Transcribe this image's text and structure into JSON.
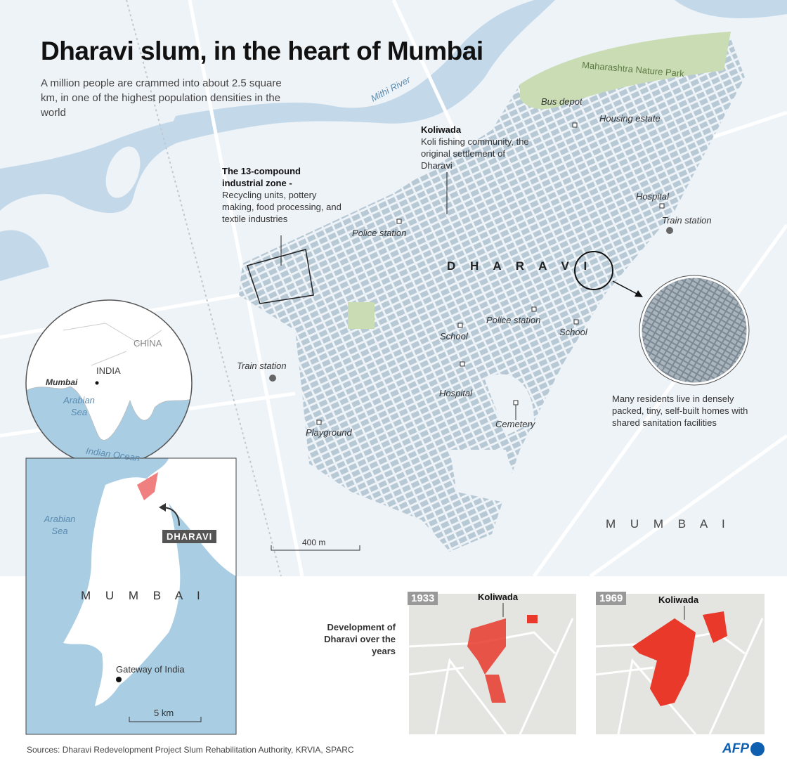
{
  "title": "Dharavi slum, in the heart of Mumbai",
  "subtitle": "A million people are crammed into about 2.5 square km, in one of the highest population densities in the world",
  "colors": {
    "background": "#eef3f8",
    "water": "#c3d9ea",
    "buildings": "#b8c9d6",
    "park": "#c9dcb3",
    "dharavi_highlight": "#f08080",
    "development": "#e8392b",
    "afp_blue": "#0e5fb0"
  },
  "main_map": {
    "river": "Mithi River",
    "park": "Maharashtra Nature Park",
    "area_name": "D H A R A V I",
    "city_name": "M U M B A I",
    "scale": "400 m",
    "places": [
      "Bus depot",
      "Housing estate",
      "Hospital",
      "Train station",
      "Police station",
      "Police station",
      "School",
      "School",
      "Hospital",
      "Cemetery",
      "Playground",
      "Train station"
    ],
    "industrial_zone": {
      "title": "The 13-compound industrial zone",
      "sep": " -",
      "text": "Recycling units, pottery making, food processing, and textile industries"
    },
    "koliwada": {
      "title": "Koliwada",
      "text": "Koli fishing community, the original settlement of Dharavi"
    },
    "dense_note": "Many residents live in densely packed, tiny, self-built homes with shared sanitation facilities"
  },
  "locator": {
    "china": "CHINA",
    "india": "INDIA",
    "mumbai": "Mumbai",
    "arabian_sea": "Arabian Sea",
    "indian_ocean": "Indian Ocean"
  },
  "mumbai_inset": {
    "arabian_sea": "Arabian Sea",
    "dharavi_tag": "DHARAVI",
    "city": "M U M B A I",
    "gateway": "Gateway of India",
    "scale": "5 km"
  },
  "development": {
    "label": "Development of Dharavi over the years",
    "maps": [
      {
        "year": "1933",
        "label": "Koliwada"
      },
      {
        "year": "1969",
        "label": "Koliwada"
      }
    ]
  },
  "sources": "Sources: Dharavi Redevelopment Project Slum Rehabilitation Authority, KRVIA, SPARC",
  "logo": "AFP"
}
